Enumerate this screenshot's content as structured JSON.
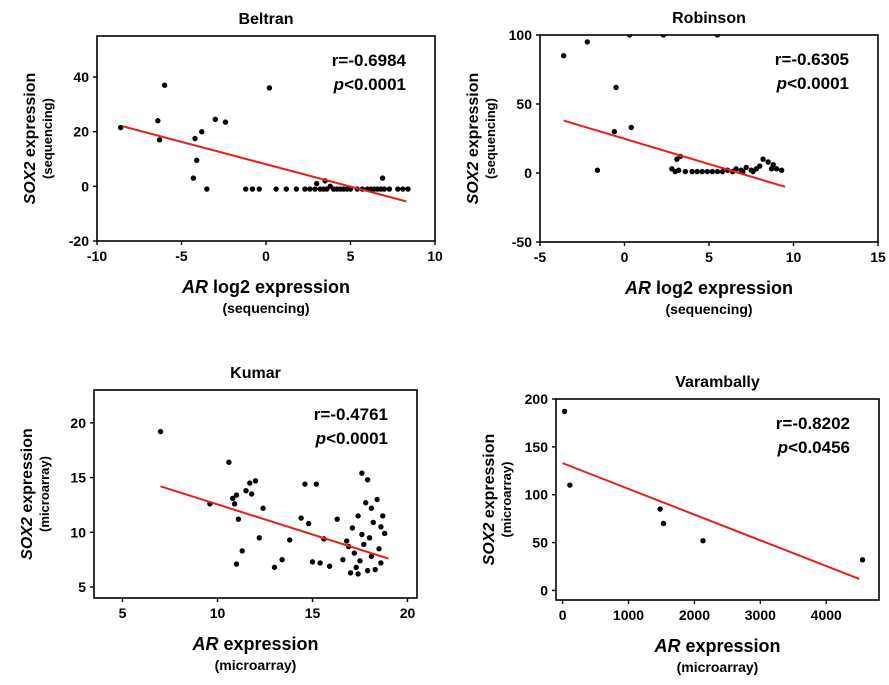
{
  "chart_data": [
    {
      "type": "scatter",
      "title": "Beltran",
      "xlabel": {
        "italic": "AR",
        "rest": " log2 expression"
      },
      "xlabel_sub": "(sequencing)",
      "ylabel": {
        "italic": "SOX2",
        "rest": " expression"
      },
      "ylabel_sub": "(sequencing)",
      "stat_r": "r=-0.6984",
      "stat_p": {
        "italic": "p",
        "rest": "<0.0001"
      },
      "xlim": [
        -10,
        10
      ],
      "ylim": [
        -20,
        55
      ],
      "xticks": [
        -10,
        -5,
        0,
        5,
        10
      ],
      "yticks": [
        -20,
        0,
        20,
        40
      ],
      "trendline": [
        [
          -8.5,
          22.0
        ],
        [
          8.3,
          -5.5
        ]
      ],
      "colors": {
        "points": "#000000",
        "trendline": "#e8201c"
      },
      "points": [
        [
          -8.6,
          21.5
        ],
        [
          -6.4,
          24
        ],
        [
          -6.3,
          17
        ],
        [
          -6.0,
          37
        ],
        [
          -4.3,
          3
        ],
        [
          -4.2,
          17.5
        ],
        [
          -4.1,
          9.5
        ],
        [
          -3.8,
          20
        ],
        [
          -3.5,
          -1
        ],
        [
          -3.0,
          24.5
        ],
        [
          -2.4,
          23.5
        ],
        [
          0.2,
          36
        ],
        [
          -1.2,
          -1
        ],
        [
          -0.8,
          -1
        ],
        [
          -0.4,
          -1
        ],
        [
          0.6,
          -1
        ],
        [
          1.2,
          -1
        ],
        [
          1.8,
          -1
        ],
        [
          2.3,
          -1
        ],
        [
          2.6,
          -1
        ],
        [
          2.9,
          -1
        ],
        [
          3.0,
          1
        ],
        [
          3.2,
          -1
        ],
        [
          3.4,
          -1
        ],
        [
          3.5,
          2
        ],
        [
          3.6,
          -1
        ],
        [
          3.8,
          0
        ],
        [
          4.0,
          -1
        ],
        [
          4.2,
          -1
        ],
        [
          4.4,
          -1
        ],
        [
          4.6,
          -1
        ],
        [
          4.8,
          -1
        ],
        [
          5.0,
          -1
        ],
        [
          5.4,
          -1
        ],
        [
          5.7,
          -1
        ],
        [
          6.0,
          -1
        ],
        [
          6.2,
          -1
        ],
        [
          6.4,
          -1
        ],
        [
          6.6,
          -1
        ],
        [
          6.8,
          -1
        ],
        [
          7.0,
          -1
        ],
        [
          6.9,
          3
        ],
        [
          7.3,
          -1
        ],
        [
          7.8,
          -1
        ],
        [
          8.1,
          -1
        ],
        [
          8.4,
          -1
        ]
      ]
    },
    {
      "type": "scatter",
      "title": "Robinson",
      "xlabel": {
        "italic": "AR",
        "rest": " log2 expression"
      },
      "xlabel_sub": "(sequencing)",
      "ylabel": {
        "italic": "SOX2",
        "rest": " expression"
      },
      "ylabel_sub": "(sequencing)",
      "stat_r": "r=-0.6305",
      "stat_p": {
        "italic": "p",
        "rest": "<0.0001"
      },
      "xlim": [
        -5,
        15
      ],
      "ylim": [
        -50,
        100
      ],
      "xticks": [
        -5,
        0,
        5,
        10,
        15
      ],
      "yticks": [
        -50,
        0,
        50,
        100
      ],
      "trendline": [
        [
          -3.6,
          38
        ],
        [
          9.5,
          -10
        ]
      ],
      "colors": {
        "points": "#000000",
        "trendline": "#e8201c"
      },
      "points": [
        [
          -3.6,
          85
        ],
        [
          -2.2,
          95
        ],
        [
          -1.6,
          2
        ],
        [
          -0.5,
          62
        ],
        [
          -0.6,
          30
        ],
        [
          0.4,
          33
        ],
        [
          0.3,
          100
        ],
        [
          2.3,
          100
        ],
        [
          5.5,
          100
        ],
        [
          2.8,
          3
        ],
        [
          3.0,
          1
        ],
        [
          3.1,
          10
        ],
        [
          3.3,
          12
        ],
        [
          3.2,
          2
        ],
        [
          3.6,
          1
        ],
        [
          4.0,
          1
        ],
        [
          4.3,
          1
        ],
        [
          4.6,
          1
        ],
        [
          4.9,
          1
        ],
        [
          5.2,
          1
        ],
        [
          5.5,
          1
        ],
        [
          5.8,
          1
        ],
        [
          6.1,
          2
        ],
        [
          6.4,
          1
        ],
        [
          6.6,
          3
        ],
        [
          6.9,
          2
        ],
        [
          7.2,
          4
        ],
        [
          7.5,
          2
        ],
        [
          7.8,
          3
        ],
        [
          8.0,
          5
        ],
        [
          8.2,
          10
        ],
        [
          8.5,
          8
        ],
        [
          8.7,
          3
        ],
        [
          9.0,
          3
        ],
        [
          9.3,
          2
        ],
        [
          8.8,
          6
        ],
        [
          7.0,
          1
        ],
        [
          7.6,
          1
        ]
      ]
    },
    {
      "type": "scatter",
      "title": "Kumar",
      "xlabel": {
        "italic": "AR",
        "rest": " expression"
      },
      "xlabel_sub": "(microarray)",
      "ylabel": {
        "italic": "SOX2",
        "rest": " expression"
      },
      "ylabel_sub": "(microarray)",
      "stat_r": "r=-0.4761",
      "stat_p": {
        "italic": "p",
        "rest": "<0.0001"
      },
      "xlim": [
        3.5,
        20.5
      ],
      "ylim": [
        4,
        23
      ],
      "xticks": [
        5,
        10,
        15,
        20
      ],
      "yticks": [
        5,
        10,
        15,
        20
      ],
      "trendline": [
        [
          7,
          14.2
        ],
        [
          19,
          7.6
        ]
      ],
      "colors": {
        "points": "#000000",
        "trendline": "#e8201c"
      },
      "points": [
        [
          7.0,
          19.2
        ],
        [
          9.6,
          12.6
        ],
        [
          10.6,
          16.4
        ],
        [
          10.8,
          13.1
        ],
        [
          10.9,
          12.6
        ],
        [
          11.0,
          13.4
        ],
        [
          11.1,
          11.2
        ],
        [
          11.3,
          8.3
        ],
        [
          11.0,
          7.1
        ],
        [
          11.5,
          13.8
        ],
        [
          11.7,
          14.5
        ],
        [
          11.8,
          13.5
        ],
        [
          12.0,
          14.7
        ],
        [
          12.4,
          12.2
        ],
        [
          12.2,
          9.5
        ],
        [
          13.0,
          6.8
        ],
        [
          13.4,
          7.5
        ],
        [
          13.8,
          9.3
        ],
        [
          14.4,
          11.3
        ],
        [
          14.6,
          14.4
        ],
        [
          15.2,
          14.4
        ],
        [
          14.8,
          10.8
        ],
        [
          15.0,
          7.3
        ],
        [
          15.4,
          7.2
        ],
        [
          15.6,
          9.4
        ],
        [
          15.9,
          6.9
        ],
        [
          16.3,
          11.2
        ],
        [
          16.6,
          7.5
        ],
        [
          16.8,
          9.2
        ],
        [
          17.1,
          10.4
        ],
        [
          17.6,
          15.4
        ],
        [
          17.9,
          14.8
        ],
        [
          17.4,
          11.5
        ],
        [
          17.8,
          12.7
        ],
        [
          18.0,
          9.5
        ],
        [
          18.2,
          10.9
        ],
        [
          18.4,
          13.0
        ],
        [
          18.5,
          8.5
        ],
        [
          18.6,
          7.2
        ],
        [
          18.7,
          11.5
        ],
        [
          17.2,
          8.1
        ],
        [
          17.3,
          6.8
        ],
        [
          17.5,
          7.4
        ],
        [
          17.7,
          8.9
        ],
        [
          17.9,
          6.5
        ],
        [
          18.1,
          7.8
        ],
        [
          18.3,
          6.6
        ],
        [
          18.8,
          9.9
        ],
        [
          17.0,
          6.3
        ],
        [
          16.9,
          8.7
        ],
        [
          17.6,
          9.8
        ],
        [
          18.1,
          12.2
        ],
        [
          18.6,
          10.5
        ],
        [
          17.4,
          6.2
        ]
      ]
    },
    {
      "type": "scatter",
      "title": "Varambally",
      "xlabel": {
        "italic": "AR",
        "rest": " expression"
      },
      "xlabel_sub": "(microarray)",
      "ylabel": {
        "italic": "SOX2",
        "rest": " expression"
      },
      "ylabel_sub": "(microarray)",
      "stat_r": "r=-0.8202",
      "stat_p": {
        "italic": "p",
        "rest": "<0.0456"
      },
      "xlim": [
        -100,
        4800
      ],
      "ylim": [
        -10,
        200
      ],
      "xticks": [
        0,
        1000,
        2000,
        3000,
        4000
      ],
      "yticks": [
        0,
        50,
        100,
        150,
        200
      ],
      "trendline": [
        [
          0,
          133
        ],
        [
          4500,
          12
        ]
      ],
      "colors": {
        "points": "#000000",
        "trendline": "#e8201c"
      },
      "points": [
        [
          30,
          187
        ],
        [
          110,
          110
        ],
        [
          1480,
          85
        ],
        [
          1530,
          70
        ],
        [
          2130,
          52
        ],
        [
          4550,
          32
        ]
      ]
    }
  ]
}
